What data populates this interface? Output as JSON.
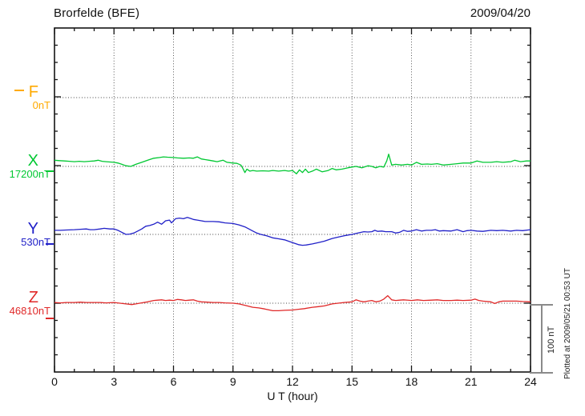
{
  "header": {
    "title": "Brorfelde (BFE)",
    "date": "2009/04/20"
  },
  "chart_data": {
    "type": "line",
    "title": "Brorfelde (BFE)",
    "date": "2009/04/20",
    "xlabel": "U T (hour)",
    "x_range": [
      0,
      24
    ],
    "x_tick_labels": [
      "0",
      "3",
      "6",
      "9",
      "12",
      "15",
      "18",
      "21",
      "24"
    ],
    "x_major_tick_hours": 3,
    "x_minor_tick_hours": 1,
    "grid": "dotted vertical lines every 3 hours; dotted horizontal line at each component baseline",
    "y_scale": {
      "nT_per_baseline_gap": 100,
      "minor_tick_nT": 25
    },
    "scale_bar": {
      "label": "100 nT",
      "nT": 100
    },
    "plotted_at": "Plotted at 2009/05/21 00:53 UT",
    "series": [
      {
        "name": "F",
        "baseline_label": "0nT",
        "color": "#FFAA00",
        "points": []
      },
      {
        "name": "X",
        "baseline_label": "17200nT",
        "color": "#00C832",
        "points": [
          [
            0,
            9
          ],
          [
            0.25,
            8.5
          ],
          [
            0.5,
            8
          ],
          [
            0.75,
            7.5
          ],
          [
            1,
            7
          ],
          [
            1.25,
            7.5
          ],
          [
            1.5,
            7
          ],
          [
            1.75,
            7.5
          ],
          [
            2,
            8
          ],
          [
            2.2,
            9
          ],
          [
            2.4,
            7.5
          ],
          [
            2.6,
            7
          ],
          [
            2.8,
            6.5
          ],
          [
            3,
            6
          ],
          [
            3.2,
            5
          ],
          [
            3.4,
            3
          ],
          [
            3.6,
            1
          ],
          [
            3.85,
            0
          ],
          [
            4.1,
            3
          ],
          [
            4.4,
            6
          ],
          [
            4.7,
            9
          ],
          [
            5,
            12
          ],
          [
            5.3,
            13
          ],
          [
            5.5,
            14
          ],
          [
            5.7,
            13.5
          ],
          [
            6,
            13
          ],
          [
            6.2,
            12.5
          ],
          [
            6.5,
            12
          ],
          [
            6.8,
            12.5
          ],
          [
            7,
            12
          ],
          [
            7.2,
            14
          ],
          [
            7.4,
            11
          ],
          [
            7.6,
            10
          ],
          [
            7.8,
            9
          ],
          [
            8,
            8
          ],
          [
            8.2,
            7
          ],
          [
            8.5,
            9
          ],
          [
            8.7,
            6
          ],
          [
            9,
            5
          ],
          [
            9.2,
            4.5
          ],
          [
            9.4,
            2
          ],
          [
            9.5,
            -3
          ],
          [
            9.6,
            -9
          ],
          [
            9.7,
            -4
          ],
          [
            9.85,
            -7
          ],
          [
            10,
            -6
          ],
          [
            10.2,
            -7
          ],
          [
            10.5,
            -6.5
          ],
          [
            10.8,
            -7
          ],
          [
            11,
            -6
          ],
          [
            11.3,
            -7
          ],
          [
            11.6,
            -6
          ],
          [
            11.8,
            -7
          ],
          [
            12,
            -6
          ],
          [
            12.2,
            -11
          ],
          [
            12.35,
            -5
          ],
          [
            12.5,
            -9
          ],
          [
            12.65,
            -4
          ],
          [
            12.8,
            -9
          ],
          [
            13,
            -7
          ],
          [
            13.2,
            -4
          ],
          [
            13.5,
            -8
          ],
          [
            13.8,
            -6
          ],
          [
            14,
            -3
          ],
          [
            14.2,
            -5
          ],
          [
            14.5,
            -4
          ],
          [
            14.8,
            -2
          ],
          [
            15,
            -1
          ],
          [
            15.2,
            0
          ],
          [
            15.5,
            -2
          ],
          [
            15.8,
            1
          ],
          [
            16,
            0
          ],
          [
            16.2,
            -2
          ],
          [
            16.4,
            0
          ],
          [
            16.6,
            -1
          ],
          [
            16.75,
            8
          ],
          [
            16.85,
            18
          ],
          [
            17,
            2
          ],
          [
            17.2,
            3
          ],
          [
            17.5,
            2
          ],
          [
            17.8,
            3
          ],
          [
            18,
            2
          ],
          [
            18.25,
            6
          ],
          [
            18.5,
            3
          ],
          [
            18.8,
            3.5
          ],
          [
            19,
            3
          ],
          [
            19.3,
            4
          ],
          [
            19.6,
            2
          ],
          [
            20,
            3
          ],
          [
            20.3,
            4
          ],
          [
            20.6,
            5
          ],
          [
            21,
            5
          ],
          [
            21.3,
            8
          ],
          [
            21.6,
            6
          ],
          [
            22,
            6
          ],
          [
            22.3,
            7
          ],
          [
            22.6,
            6
          ],
          [
            23,
            7
          ],
          [
            23.2,
            9
          ],
          [
            23.5,
            7
          ],
          [
            23.8,
            8
          ],
          [
            24,
            8
          ]
        ]
      },
      {
        "name": "Y",
        "baseline_label": "530nT",
        "color": "#2020C8",
        "points": [
          [
            0,
            6
          ],
          [
            0.3,
            6
          ],
          [
            0.6,
            6.5
          ],
          [
            1,
            7
          ],
          [
            1.3,
            7.5
          ],
          [
            1.6,
            8
          ],
          [
            1.8,
            7
          ],
          [
            2,
            7
          ],
          [
            2.3,
            8
          ],
          [
            2.5,
            9
          ],
          [
            2.8,
            8
          ],
          [
            3,
            8
          ],
          [
            3.2,
            6
          ],
          [
            3.4,
            3
          ],
          [
            3.6,
            0
          ],
          [
            3.8,
            0.5
          ],
          [
            4,
            2
          ],
          [
            4.2,
            5
          ],
          [
            4.4,
            8
          ],
          [
            4.6,
            12
          ],
          [
            4.8,
            13
          ],
          [
            5,
            15
          ],
          [
            5.2,
            18
          ],
          [
            5.4,
            15
          ],
          [
            5.6,
            20
          ],
          [
            5.8,
            21
          ],
          [
            5.9,
            17
          ],
          [
            6.1,
            23
          ],
          [
            6.3,
            24
          ],
          [
            6.5,
            23
          ],
          [
            6.7,
            25
          ],
          [
            6.9,
            23
          ],
          [
            7,
            22
          ],
          [
            7.2,
            21
          ],
          [
            7.4,
            20
          ],
          [
            7.6,
            19
          ],
          [
            7.8,
            19
          ],
          [
            8,
            19
          ],
          [
            8.3,
            18.5
          ],
          [
            8.6,
            17
          ],
          [
            9,
            16
          ],
          [
            9.3,
            14
          ],
          [
            9.6,
            11
          ],
          [
            9.8,
            8
          ],
          [
            10,
            5
          ],
          [
            10.2,
            2
          ],
          [
            10.4,
            0
          ],
          [
            10.7,
            -2
          ],
          [
            11,
            -5
          ],
          [
            11.3,
            -6.5
          ],
          [
            11.6,
            -8
          ],
          [
            12,
            -12
          ],
          [
            12.3,
            -15
          ],
          [
            12.5,
            -16
          ],
          [
            12.7,
            -15.5
          ],
          [
            13,
            -14
          ],
          [
            13.3,
            -12
          ],
          [
            13.6,
            -10
          ],
          [
            14,
            -6
          ],
          [
            14.3,
            -4
          ],
          [
            14.6,
            -2
          ],
          [
            15,
            0
          ],
          [
            15.3,
            2
          ],
          [
            15.6,
            4
          ],
          [
            15.8,
            3.5
          ],
          [
            16,
            4
          ],
          [
            16.15,
            6
          ],
          [
            16.3,
            4.5
          ],
          [
            16.5,
            5
          ],
          [
            16.7,
            4
          ],
          [
            17,
            4
          ],
          [
            17.2,
            2
          ],
          [
            17.4,
            3
          ],
          [
            17.6,
            6
          ],
          [
            17.8,
            4.5
          ],
          [
            18,
            5
          ],
          [
            18.25,
            7
          ],
          [
            18.5,
            5
          ],
          [
            18.75,
            6
          ],
          [
            19,
            6
          ],
          [
            19.2,
            7
          ],
          [
            19.4,
            5
          ],
          [
            19.6,
            5.5
          ],
          [
            20,
            5
          ],
          [
            20.3,
            7
          ],
          [
            20.6,
            4
          ],
          [
            20.8,
            5.5
          ],
          [
            21,
            6
          ],
          [
            21.3,
            5
          ],
          [
            21.6,
            4.5
          ],
          [
            22,
            6
          ],
          [
            22.3,
            5.5
          ],
          [
            22.6,
            6
          ],
          [
            23,
            5
          ],
          [
            23.3,
            6
          ],
          [
            23.6,
            5.5
          ],
          [
            24,
            7
          ]
        ]
      },
      {
        "name": "Z",
        "baseline_label": "46810nT",
        "color": "#E02828",
        "points": [
          [
            0,
            1
          ],
          [
            0.3,
            0.5
          ],
          [
            0.6,
            1
          ],
          [
            1,
            1
          ],
          [
            1.3,
            1.5
          ],
          [
            1.6,
            1
          ],
          [
            2,
            1
          ],
          [
            2.3,
            1
          ],
          [
            2.6,
            0.5
          ],
          [
            3,
            1
          ],
          [
            3.3,
            0
          ],
          [
            3.6,
            -1
          ],
          [
            3.9,
            -2
          ],
          [
            4.1,
            -1
          ],
          [
            4.3,
            0
          ],
          [
            4.5,
            1
          ],
          [
            4.7,
            2
          ],
          [
            5,
            4
          ],
          [
            5.2,
            4.5
          ],
          [
            5.4,
            5
          ],
          [
            5.6,
            4
          ],
          [
            5.8,
            4.5
          ],
          [
            6,
            4
          ],
          [
            6.2,
            5.5
          ],
          [
            6.4,
            5
          ],
          [
            6.6,
            4
          ],
          [
            6.8,
            4.5
          ],
          [
            7,
            5
          ],
          [
            7.2,
            3
          ],
          [
            7.4,
            2
          ],
          [
            7.7,
            1.5
          ],
          [
            8,
            1
          ],
          [
            8.3,
            1
          ],
          [
            8.6,
            0.5
          ],
          [
            9,
            0
          ],
          [
            9.3,
            -1
          ],
          [
            9.6,
            -3
          ],
          [
            10,
            -6
          ],
          [
            10.3,
            -7
          ],
          [
            10.6,
            -8.5
          ],
          [
            11,
            -11
          ],
          [
            11.3,
            -11
          ],
          [
            11.6,
            -10.5
          ],
          [
            12,
            -10
          ],
          [
            12.3,
            -9
          ],
          [
            12.6,
            -8
          ],
          [
            13,
            -6
          ],
          [
            13.3,
            -5
          ],
          [
            13.6,
            -4
          ],
          [
            14,
            -1
          ],
          [
            14.3,
            0
          ],
          [
            14.6,
            1
          ],
          [
            15,
            2
          ],
          [
            15.2,
            5
          ],
          [
            15.4,
            3
          ],
          [
            15.6,
            2
          ],
          [
            15.8,
            3
          ],
          [
            16,
            4
          ],
          [
            16.2,
            2
          ],
          [
            16.4,
            3
          ],
          [
            16.6,
            6
          ],
          [
            16.8,
            11
          ],
          [
            17,
            5
          ],
          [
            17.2,
            4
          ],
          [
            17.4,
            4.5
          ],
          [
            17.6,
            5
          ],
          [
            18,
            4
          ],
          [
            18.3,
            5
          ],
          [
            18.6,
            4
          ],
          [
            19,
            4.5
          ],
          [
            19.3,
            5
          ],
          [
            19.6,
            4
          ],
          [
            20,
            4
          ],
          [
            20.3,
            4.5
          ],
          [
            20.6,
            4
          ],
          [
            21,
            4.5
          ],
          [
            21.2,
            6
          ],
          [
            21.4,
            4
          ],
          [
            21.6,
            3
          ],
          [
            22,
            2
          ],
          [
            22.2,
            -0.5
          ],
          [
            22.4,
            2
          ],
          [
            22.6,
            3
          ],
          [
            23,
            3
          ],
          [
            23.3,
            3
          ],
          [
            23.6,
            2.5
          ],
          [
            24,
            2
          ]
        ]
      }
    ]
  }
}
